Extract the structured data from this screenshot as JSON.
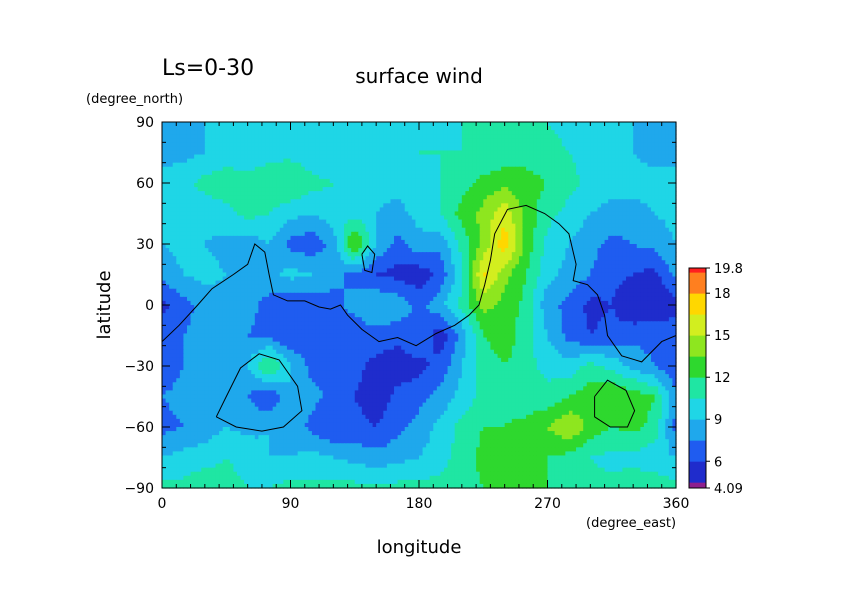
{
  "chart_data": {
    "type": "heatmap",
    "period_label": "Ls=0-30",
    "title": "surface wind",
    "xlabel": "longitude",
    "ylabel": "latitude",
    "x_units": "(degree_east)",
    "y_units": "(degree_north)",
    "xlim": [
      0,
      360
    ],
    "ylim": [
      -90,
      90
    ],
    "x_ticks": [
      0,
      90,
      180,
      270,
      360
    ],
    "y_ticks": [
      -90,
      -60,
      -30,
      0,
      30,
      60,
      90
    ],
    "colorbar": {
      "min": 4.09,
      "max": 19.8,
      "tick_labels": [
        "19.8",
        "18",
        "15",
        "12",
        "9",
        "6",
        "4.09"
      ],
      "levels": [
        4.09,
        4.5,
        6,
        7.5,
        9,
        10.5,
        12,
        13.5,
        15,
        16.5,
        18,
        19.5,
        19.8
      ],
      "colors": [
        "#8e1f8e",
        "#1f2ccc",
        "#1f5cf0",
        "#1fa8ec",
        "#1fd6e6",
        "#1fe6a3",
        "#2ed82e",
        "#8ee61f",
        "#d2ee1f",
        "#ffd700",
        "#ff7f1f",
        "#ff1f1f",
        "#ff9f9f"
      ]
    },
    "grid_lon": [
      0,
      15,
      30,
      45,
      60,
      75,
      90,
      105,
      120,
      135,
      150,
      165,
      180,
      195,
      210,
      225,
      240,
      255,
      270,
      285,
      300,
      315,
      330,
      345,
      360
    ],
    "grid_lat": [
      -90,
      -75,
      -60,
      -45,
      -30,
      -15,
      0,
      15,
      30,
      45,
      60,
      75,
      90
    ],
    "values": [
      [
        11.0,
        11.0,
        11.5,
        11.0,
        10.5,
        10.5,
        11.0,
        11.0,
        11.0,
        11.0,
        11.0,
        11.0,
        11.0,
        11.0,
        11.5,
        12.0,
        12.0,
        12.0,
        12.0,
        12.0,
        11.0,
        11.0,
        11.5,
        11.5,
        11.0
      ],
      [
        9.0,
        9.5,
        10.0,
        10.5,
        10.0,
        9.0,
        9.0,
        9.5,
        9.0,
        8.5,
        8.0,
        8.5,
        9.0,
        10.0,
        11.0,
        12.5,
        13.0,
        13.0,
        12.0,
        11.5,
        10.5,
        10.0,
        10.0,
        9.5,
        9.0
      ],
      [
        7.0,
        7.5,
        8.0,
        9.0,
        8.5,
        9.0,
        8.5,
        7.0,
        6.0,
        6.5,
        6.0,
        7.0,
        8.0,
        9.5,
        11.0,
        12.0,
        12.0,
        12.5,
        13.5,
        15.0,
        13.0,
        12.0,
        12.5,
        11.5,
        7.0
      ],
      [
        7.5,
        8.0,
        8.5,
        9.0,
        7.5,
        6.0,
        9.0,
        8.0,
        7.0,
        6.0,
        5.0,
        6.5,
        7.0,
        8.0,
        9.5,
        11.0,
        11.5,
        11.0,
        11.0,
        12.0,
        13.0,
        13.5,
        13.0,
        12.0,
        7.5
      ],
      [
        6.5,
        7.5,
        8.0,
        8.5,
        9.0,
        12.5,
        9.0,
        7.0,
        7.0,
        6.5,
        5.5,
        5.0,
        5.5,
        6.5,
        9.0,
        11.0,
        12.0,
        11.0,
        10.0,
        9.5,
        11.0,
        10.0,
        8.5,
        7.5,
        6.5
      ],
      [
        7.0,
        7.5,
        8.0,
        8.0,
        7.5,
        7.0,
        6.0,
        7.0,
        6.5,
        6.5,
        7.0,
        6.5,
        7.5,
        5.0,
        8.0,
        12.0,
        13.0,
        11.0,
        9.0,
        7.0,
        6.0,
        6.5,
        7.0,
        7.0,
        7.0
      ],
      [
        5.5,
        7.0,
        8.0,
        8.5,
        8.0,
        7.0,
        6.0,
        6.5,
        7.0,
        8.0,
        9.0,
        8.5,
        7.0,
        8.5,
        11.0,
        14.0,
        13.0,
        11.5,
        8.0,
        7.0,
        5.5,
        6.0,
        4.5,
        4.5,
        5.5
      ],
      [
        8.0,
        9.0,
        9.5,
        9.0,
        8.0,
        8.5,
        9.5,
        9.0,
        8.0,
        7.0,
        6.0,
        5.5,
        5.0,
        6.5,
        10.0,
        17.0,
        14.0,
        12.0,
        9.5,
        8.5,
        7.5,
        6.5,
        6.0,
        5.5,
        8.0
      ],
      [
        9.0,
        9.5,
        9.0,
        8.5,
        8.0,
        9.0,
        7.0,
        6.5,
        8.0,
        14.0,
        9.0,
        7.0,
        8.5,
        8.0,
        11.0,
        14.0,
        17.5,
        13.0,
        10.0,
        9.0,
        8.0,
        7.0,
        7.5,
        8.0,
        9.0
      ],
      [
        9.5,
        10.0,
        9.5,
        10.0,
        11.0,
        10.5,
        9.5,
        9.0,
        10.0,
        10.0,
        9.0,
        8.5,
        9.5,
        10.5,
        12.5,
        14.0,
        16.0,
        13.0,
        11.0,
        10.0,
        9.0,
        8.5,
        8.5,
        9.0,
        9.5
      ],
      [
        9.5,
        10.0,
        11.0,
        11.5,
        11.0,
        11.5,
        12.0,
        11.0,
        10.5,
        10.0,
        9.5,
        9.5,
        10.0,
        10.5,
        11.5,
        12.5,
        13.0,
        12.5,
        12.0,
        11.0,
        10.0,
        9.5,
        9.5,
        9.5,
        9.5
      ],
      [
        8.5,
        8.5,
        9.0,
        9.5,
        9.5,
        10.0,
        10.0,
        9.5,
        9.0,
        9.0,
        9.5,
        10.0,
        10.5,
        10.5,
        10.5,
        10.5,
        11.0,
        11.5,
        11.0,
        10.5,
        10.0,
        9.5,
        9.0,
        8.5,
        8.5
      ],
      [
        8.5,
        8.5,
        9.0,
        9.0,
        9.0,
        9.5,
        9.5,
        9.5,
        9.5,
        9.5,
        10.0,
        10.0,
        10.0,
        10.0,
        10.5,
        10.5,
        10.5,
        10.5,
        10.5,
        10.0,
        10.0,
        9.5,
        9.0,
        8.5,
        8.5
      ]
    ],
    "topography_contours": [
      [
        [
          0,
          -18
        ],
        [
          12,
          -10
        ],
        [
          25,
          0
        ],
        [
          35,
          8
        ],
        [
          50,
          15
        ],
        [
          60,
          20
        ],
        [
          65,
          30
        ],
        [
          72,
          26
        ],
        [
          75,
          15
        ],
        [
          78,
          5
        ],
        [
          88,
          2
        ],
        [
          100,
          2
        ],
        [
          110,
          -1
        ],
        [
          118,
          -2
        ],
        [
          125,
          0
        ],
        [
          130,
          -5
        ],
        [
          140,
          -12
        ],
        [
          152,
          -18
        ],
        [
          165,
          -16
        ],
        [
          178,
          -20
        ],
        [
          192,
          -14
        ],
        [
          205,
          -10
        ],
        [
          215,
          -5
        ],
        [
          222,
          0
        ],
        [
          226,
          10
        ],
        [
          230,
          22
        ],
        [
          233,
          35
        ],
        [
          242,
          47
        ],
        [
          255,
          49
        ],
        [
          268,
          45
        ],
        [
          278,
          40
        ],
        [
          285,
          35
        ],
        [
          290,
          20
        ],
        [
          288,
          12
        ],
        [
          298,
          10
        ],
        [
          305,
          5
        ],
        [
          310,
          -5
        ],
        [
          312,
          -15
        ],
        [
          322,
          -25
        ],
        [
          336,
          -28
        ],
        [
          350,
          -18
        ],
        [
          360,
          -15
        ]
      ],
      [
        [
          140,
          25
        ],
        [
          144,
          29
        ],
        [
          149,
          25
        ],
        [
          147,
          16
        ],
        [
          142,
          17
        ],
        [
          140,
          25
        ]
      ],
      [
        [
          38,
          -55
        ],
        [
          45,
          -45
        ],
        [
          55,
          -31
        ],
        [
          68,
          -24
        ],
        [
          82,
          -27
        ],
        [
          95,
          -40
        ],
        [
          98,
          -52
        ],
        [
          85,
          -60
        ],
        [
          70,
          -62
        ],
        [
          52,
          -60
        ],
        [
          38,
          -55
        ]
      ],
      [
        [
          303,
          -45
        ],
        [
          312,
          -37
        ],
        [
          325,
          -42
        ],
        [
          331,
          -52
        ],
        [
          326,
          -60
        ],
        [
          314,
          -60
        ],
        [
          303,
          -55
        ],
        [
          303,
          -45
        ]
      ]
    ]
  }
}
